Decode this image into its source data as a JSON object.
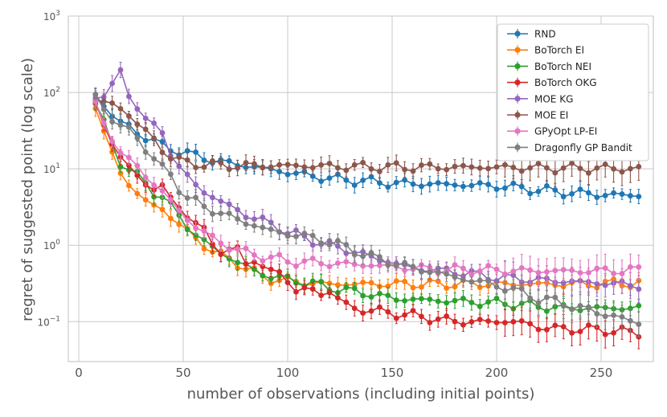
{
  "chart_data": {
    "type": "line",
    "title": "",
    "xlabel": "number of observations (including initial points)",
    "ylabel": "regret of suggested point (log scale)",
    "xlim": [
      -5,
      275
    ],
    "ylim": [
      0.03,
      1000
    ],
    "yscale": "log",
    "grid": true,
    "legend_position": "top-right",
    "x_ticks": [
      {
        "value": 0,
        "label": "0"
      },
      {
        "value": 50,
        "label": "50"
      },
      {
        "value": 100,
        "label": "100"
      },
      {
        "value": 150,
        "label": "150"
      },
      {
        "value": 200,
        "label": "200"
      },
      {
        "value": 250,
        "label": "250"
      }
    ],
    "y_ticks": [
      {
        "value": 0.1,
        "base": "10",
        "exp": "−1"
      },
      {
        "value": 1,
        "base": "10",
        "exp": "0"
      },
      {
        "value": 10,
        "base": "10",
        "exp": "1"
      },
      {
        "value": 100,
        "base": "10",
        "exp": "2"
      },
      {
        "value": 1000,
        "base": "10",
        "exp": "3"
      }
    ],
    "series": [
      {
        "name": "RND",
        "color": "#1f77b4",
        "x": [
          8,
          20,
          40,
          55,
          70,
          80,
          100,
          120,
          150,
          180,
          200,
          230,
          250,
          268
        ],
        "values": [
          90,
          40,
          20,
          15,
          12,
          11,
          9,
          7.5,
          6.5,
          6.2,
          6,
          5,
          4.6,
          4.5
        ]
      },
      {
        "name": "BoTorch EI",
        "color": "#ff7f0e",
        "x": [
          8,
          12,
          16,
          20,
          25,
          30,
          35,
          40,
          45,
          50,
          55,
          60,
          65,
          70,
          75,
          80,
          85,
          90,
          100,
          110,
          120,
          140,
          160,
          180,
          200,
          220,
          240,
          268
        ],
        "values": [
          70,
          30,
          15,
          9,
          6,
          4,
          3.4,
          3,
          2.2,
          1.7,
          1.3,
          1.0,
          0.8,
          0.7,
          0.6,
          0.5,
          0.42,
          0.37,
          0.34,
          0.32,
          0.31,
          0.31,
          0.31,
          0.31,
          0.31,
          0.31,
          0.31,
          0.32
        ]
      },
      {
        "name": "BoTorch NEI",
        "color": "#2ca02c",
        "x": [
          8,
          12,
          16,
          20,
          25,
          30,
          35,
          40,
          45,
          50,
          55,
          60,
          65,
          70,
          75,
          80,
          85,
          90,
          95,
          100,
          110,
          120,
          130,
          140,
          150,
          170,
          190,
          210,
          230,
          250,
          268
        ],
        "values": [
          75,
          40,
          20,
          12,
          10,
          7,
          5,
          4.5,
          3,
          2,
          1.5,
          1.1,
          0.9,
          0.75,
          0.6,
          0.55,
          0.45,
          0.4,
          0.38,
          0.36,
          0.32,
          0.28,
          0.25,
          0.23,
          0.2,
          0.19,
          0.18,
          0.17,
          0.15,
          0.15,
          0.15
        ]
      },
      {
        "name": "BoTorch OKG",
        "color": "#d62728",
        "x": [
          8,
          12,
          16,
          20,
          25,
          30,
          35,
          40,
          45,
          50,
          55,
          60,
          65,
          70,
          75,
          80,
          85,
          90,
          95,
          100,
          105,
          110,
          115,
          120,
          130,
          140,
          150,
          160,
          170,
          180,
          190,
          200,
          210,
          220,
          230,
          240,
          250,
          260,
          268
        ],
        "values": [
          70,
          40,
          22,
          14,
          10,
          7,
          5.5,
          6,
          3.5,
          3,
          2,
          1.5,
          1.0,
          0.8,
          0.9,
          0.6,
          0.7,
          0.4,
          0.5,
          0.35,
          0.22,
          0.3,
          0.22,
          0.25,
          0.15,
          0.14,
          0.13,
          0.12,
          0.11,
          0.1,
          0.1,
          0.1,
          0.1,
          0.085,
          0.08,
          0.08,
          0.078,
          0.075,
          0.07
        ]
      },
      {
        "name": "MOE KG",
        "color": "#9467bd",
        "x": [
          8,
          12,
          16,
          20,
          24,
          28,
          32,
          36,
          40,
          45,
          50,
          55,
          60,
          70,
          80,
          90,
          100,
          110,
          120,
          130,
          140,
          160,
          180,
          200,
          220,
          240,
          268
        ],
        "values": [
          85,
          100,
          130,
          170,
          90,
          70,
          45,
          35,
          30,
          14,
          9,
          6.5,
          5,
          3.5,
          2.5,
          2,
          1.5,
          1.2,
          1.0,
          0.85,
          0.7,
          0.5,
          0.45,
          0.38,
          0.35,
          0.33,
          0.3
        ]
      },
      {
        "name": "MOE EI",
        "color": "#8c564b",
        "x": [
          8,
          12,
          16,
          20,
          25,
          30,
          35,
          40,
          45,
          50,
          60,
          70,
          80,
          100,
          120,
          150,
          180,
          200,
          220,
          240,
          268
        ],
        "values": [
          80,
          75,
          70,
          60,
          50,
          35,
          25,
          18,
          14,
          12,
          11.5,
          11,
          11,
          11,
          10.8,
          10.5,
          10.5,
          10.5,
          10.3,
          10.2,
          10
        ]
      },
      {
        "name": "GPyOpt LP-EI",
        "color": "#e377c2",
        "x": [
          8,
          12,
          16,
          20,
          25,
          30,
          35,
          40,
          45,
          50,
          55,
          60,
          65,
          70,
          75,
          80,
          90,
          100,
          120,
          140,
          160,
          180,
          200,
          220,
          240,
          268
        ],
        "values": [
          70,
          35,
          25,
          18,
          12,
          9,
          7,
          5,
          3.5,
          2.5,
          1.8,
          1.5,
          1.2,
          1.0,
          0.9,
          0.8,
          0.7,
          0.62,
          0.58,
          0.55,
          0.5,
          0.48,
          0.47,
          0.46,
          0.46,
          0.47
        ]
      },
      {
        "name": "Dragonfly GP Bandit",
        "color": "#7f7f7f",
        "x": [
          8,
          12,
          16,
          20,
          25,
          30,
          35,
          40,
          45,
          50,
          55,
          60,
          70,
          80,
          90,
          100,
          110,
          120,
          130,
          140,
          150,
          160,
          170,
          180,
          190,
          200,
          210,
          220,
          230,
          240,
          250,
          260,
          268
        ],
        "values": [
          90,
          60,
          45,
          38,
          30,
          22,
          15,
          10,
          8,
          4.5,
          3.8,
          3.2,
          2.5,
          2.0,
          1.6,
          1.4,
          1.3,
          1.1,
          0.9,
          0.7,
          0.6,
          0.5,
          0.45,
          0.38,
          0.34,
          0.3,
          0.25,
          0.2,
          0.18,
          0.15,
          0.13,
          0.11,
          0.095
        ]
      }
    ]
  }
}
